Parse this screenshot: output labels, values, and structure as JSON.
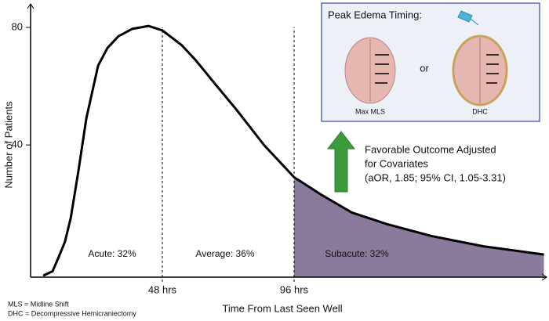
{
  "chart_data": {
    "type": "line",
    "x_label": "Time From Last Seen Well",
    "y_label": "Number of Patients",
    "xlim": [
      0,
      188
    ],
    "ylim": [
      -5,
      88
    ],
    "xticks": [
      {
        "value": 48,
        "label": "48 hrs"
      },
      {
        "value": 96,
        "label": "96 hrs"
      }
    ],
    "yticks": [
      40,
      80
    ],
    "series": [
      {
        "color": "#000000",
        "x": [
          4.6,
          8,
          10,
          12.5,
          14.6,
          17.4,
          20.3,
          24.6,
          28,
          32,
          37,
          43,
          48,
          55,
          60,
          67,
          75,
          85,
          96,
          106,
          117,
          130,
          146,
          165,
          187
        ],
        "values": [
          -4.5,
          -3,
          1.3,
          7,
          15,
          31,
          49,
          67,
          73,
          77,
          79.5,
          80.5,
          79,
          74,
          69,
          61,
          52,
          40,
          29,
          23,
          17,
          13,
          9,
          5.5,
          2.7
        ]
      }
    ],
    "shade_color": "#8a7a9b",
    "phases": [
      "Acute: 32%",
      "Average: 36%",
      "Subacute: 32%"
    ],
    "outcome": [
      "Favorable Outcome Adjusted",
      "for Covariates",
      "(aOR, 1.85; 95% CI, 1.05-3.31)"
    ],
    "inset": {
      "title": "Peak Edema Timing:",
      "left_label": "Max MLS",
      "middle": "or",
      "right_label": "DHC"
    },
    "footnotes": [
      "MLS = Midline Shift",
      "DHC = Decompressive Hemicraniectomy"
    ]
  }
}
